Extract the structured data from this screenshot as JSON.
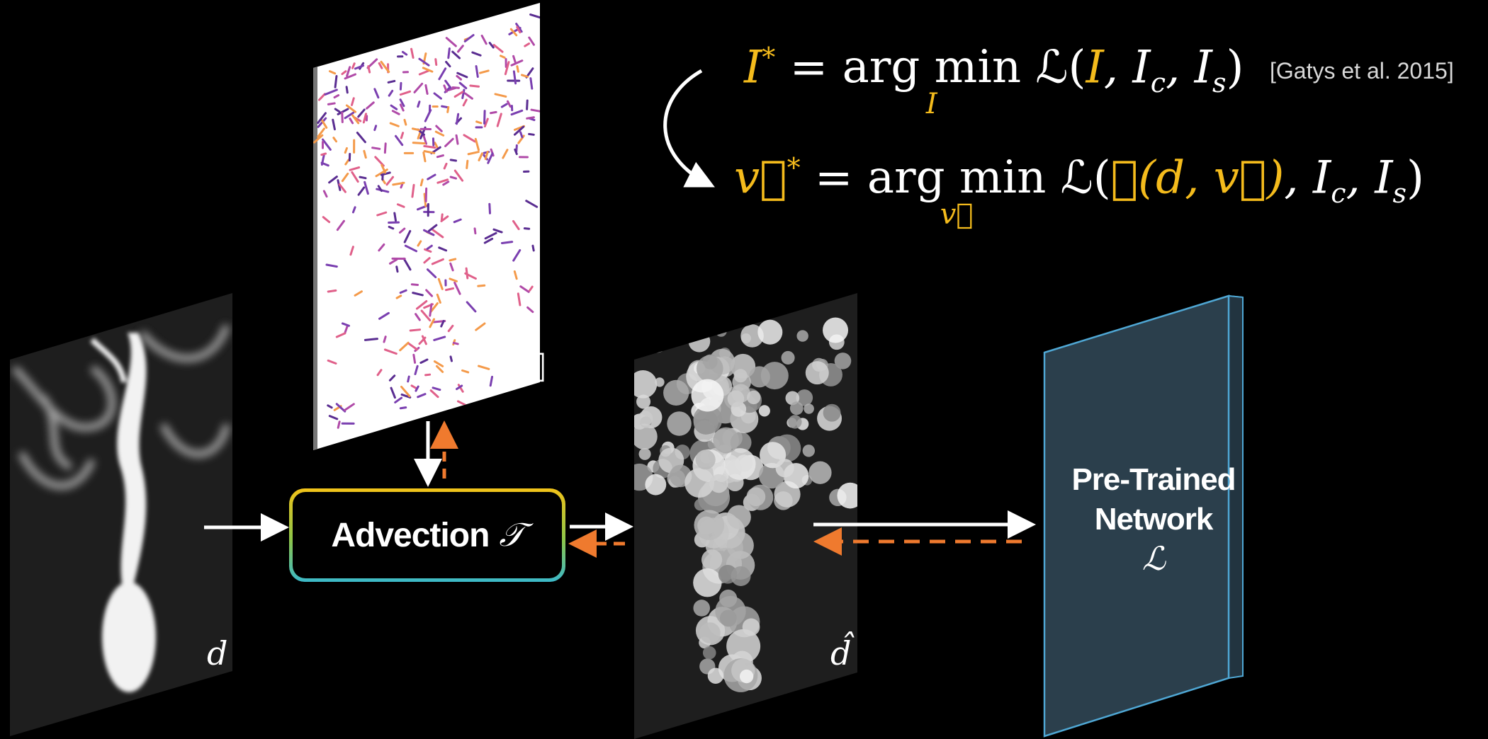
{
  "equations": {
    "eq1": {
      "lhs": "I",
      "lhs_sup": "*",
      "equals": "=",
      "argmin": "arg min",
      "argmin_sub": "I",
      "loss": "ℒ(",
      "arg1": "I",
      "rest": ", I",
      "rest_sub1": "c",
      "rest2": ", I",
      "rest_sub2": "s",
      "close": ")"
    },
    "eq2": {
      "lhs": "v⃗",
      "lhs_sup": "*",
      "equals": "=",
      "argmin": "arg min",
      "argmin_sub": "v⃗",
      "loss": "ℒ(",
      "arg1": "𝒯(d, v⃗)",
      "rest": ", I",
      "rest_sub1": "c",
      "rest2": ", I",
      "rest_sub2": "s",
      "close": ")"
    },
    "citation": "[Gatys et al. 2015]"
  },
  "advection": {
    "label": "Advection",
    "symbol": "𝒯"
  },
  "network": {
    "line1": "Pre-Trained",
    "line2": "Network",
    "symbol": "ℒ"
  },
  "panels": {
    "density": "d",
    "velocity": "v⃗",
    "stylized": "d̂"
  },
  "colors": {
    "accent_yellow": "#f4bb1c",
    "arrow_orange": "#ef7a2e",
    "network_fill": "#2b3f4c",
    "network_edge": "#4fa7d4"
  }
}
